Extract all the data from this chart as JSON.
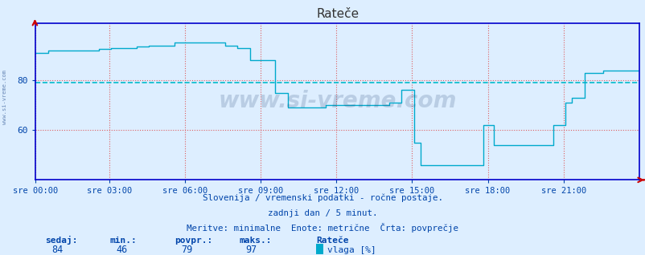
{
  "title": "Rateče",
  "bg_color": "#ddeeff",
  "plot_bg_color": "#ddeeff",
  "line_color": "#00aacc",
  "grid_color_v": "#dd4444",
  "grid_color_h": "#dd4444",
  "avg_h_color": "#00bbcc",
  "spine_color": "#0000cc",
  "xlabel_color": "#0044aa",
  "ylabel_color": "#0044aa",
  "title_color": "#333333",
  "text_color": "#0044aa",
  "watermark_color": "#1a3a6a",
  "ymin": 40,
  "ymax": 100,
  "yticks": [
    60,
    80
  ],
  "avg_value": 79,
  "min_value": 46,
  "max_value": 97,
  "current_value": 84,
  "x_labels": [
    "sre 00:00",
    "sre 03:00",
    "sre 06:00",
    "sre 09:00",
    "sre 12:00",
    "sre 15:00",
    "sre 18:00",
    "sre 21:00"
  ],
  "x_ticks_frac": [
    0.0,
    0.125,
    0.25,
    0.375,
    0.5,
    0.625,
    0.75,
    0.875
  ],
  "total_points": 288,
  "subtitle1": "Slovenija / vremenski podatki - ročne postaje.",
  "subtitle2": "zadnji dan / 5 minut.",
  "subtitle3": "Meritve: minimalne  Enote: metrične  Črta: povprečje",
  "stat_labels": [
    "sedaj:",
    "min.:",
    "povpr.:",
    "maks.:"
  ],
  "stat_values": [
    "84",
    "46",
    "79",
    "97"
  ],
  "legend_label": "vlaga [%]",
  "location_label": "Rateče"
}
